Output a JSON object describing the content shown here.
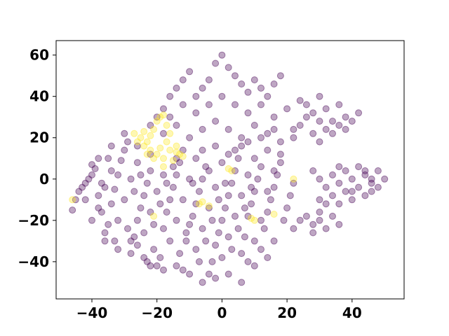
{
  "chart_data": {
    "type": "scatter",
    "title": "",
    "xlabel": "",
    "ylabel": "",
    "xlim": [
      -51,
      56
    ],
    "ylim": [
      -58,
      67
    ],
    "xticks": [
      -40,
      -20,
      0,
      20,
      40
    ],
    "yticks": [
      -40,
      -20,
      0,
      20,
      40,
      60
    ],
    "xtick_labels": [
      "−40",
      "−20",
      "0",
      "20",
      "40"
    ],
    "ytick_labels": [
      "−40",
      "−20",
      "0",
      "20",
      "40",
      "60"
    ],
    "grid": false,
    "legend": "none",
    "marker": "circle",
    "alpha": 0.35,
    "series": [
      {
        "class": 0,
        "color": "#440154",
        "points": [
          [
            -46,
            -15
          ],
          [
            -45,
            -10
          ],
          [
            -43,
            -4
          ],
          [
            -42,
            -2
          ],
          [
            -40,
            7
          ],
          [
            -39,
            5
          ],
          [
            -38,
            -8
          ],
          [
            -37,
            -16
          ],
          [
            -36,
            -26
          ],
          [
            -35,
            -22
          ],
          [
            -34,
            -12
          ],
          [
            -33,
            -5
          ],
          [
            -32,
            2
          ],
          [
            -31,
            9
          ],
          [
            -30,
            14
          ],
          [
            -29,
            18
          ],
          [
            -28,
            -30
          ],
          [
            -27,
            -28
          ],
          [
            -26,
            -20
          ],
          [
            -25,
            -14
          ],
          [
            -24,
            -8
          ],
          [
            -23,
            -2
          ],
          [
            -22,
            4
          ],
          [
            -21,
            -34
          ],
          [
            -20,
            -42
          ],
          [
            -19,
            -38
          ],
          [
            -18,
            -24
          ],
          [
            -17,
            -16
          ],
          [
            -16,
            -10
          ],
          [
            -15,
            -4
          ],
          [
            -14,
            2
          ],
          [
            -13,
            8
          ],
          [
            -12,
            -44
          ],
          [
            -11,
            -30
          ],
          [
            -10,
            -22
          ],
          [
            -9,
            -18
          ],
          [
            -8,
            -12
          ],
          [
            -7,
            -6
          ],
          [
            -6,
            0
          ],
          [
            -5,
            6
          ],
          [
            -4,
            -46
          ],
          [
            -3,
            -40
          ],
          [
            -2,
            -32
          ],
          [
            -1,
            -26
          ],
          [
            0,
            -20
          ],
          [
            1,
            -14
          ],
          [
            2,
            -8
          ],
          [
            3,
            -2
          ],
          [
            4,
            4
          ],
          [
            5,
            10
          ],
          [
            6,
            -36
          ],
          [
            7,
            -28
          ],
          [
            8,
            -18
          ],
          [
            9,
            -12
          ],
          [
            10,
            -6
          ],
          [
            11,
            0
          ],
          [
            12,
            6
          ],
          [
            13,
            -24
          ],
          [
            14,
            -16
          ],
          [
            15,
            -10
          ],
          [
            16,
            -4
          ],
          [
            17,
            2
          ],
          [
            18,
            8
          ],
          [
            19,
            -20
          ],
          [
            20,
            -14
          ],
          [
            21,
            -8
          ],
          [
            22,
            -2
          ],
          [
            -38,
            -14
          ],
          [
            -36,
            -4
          ],
          [
            -34,
            4
          ],
          [
            -32,
            -20
          ],
          [
            -30,
            -10
          ],
          [
            -28,
            0
          ],
          [
            -26,
            8
          ],
          [
            -24,
            -26
          ],
          [
            -22,
            -16
          ],
          [
            -20,
            -6
          ],
          [
            -18,
            2
          ],
          [
            -16,
            -30
          ],
          [
            -14,
            -20
          ],
          [
            -12,
            -10
          ],
          [
            -10,
            0
          ],
          [
            -8,
            -34
          ],
          [
            -6,
            -24
          ],
          [
            -4,
            -14
          ],
          [
            -2,
            -4
          ],
          [
            0,
            -38
          ],
          [
            2,
            -28
          ],
          [
            4,
            -18
          ],
          [
            6,
            -8
          ],
          [
            8,
            2
          ],
          [
            10,
            -30
          ],
          [
            12,
            -20
          ],
          [
            14,
            -6
          ],
          [
            16,
            4
          ],
          [
            -44,
            -6
          ],
          [
            -41,
            0
          ],
          [
            -37,
            -2
          ],
          [
            -35,
            10
          ],
          [
            -33,
            -30
          ],
          [
            -29,
            -24
          ],
          [
            -27,
            -6
          ],
          [
            -25,
            2
          ],
          [
            -23,
            -40
          ],
          [
            -21,
            -22
          ],
          [
            -19,
            -12
          ],
          [
            -17,
            -2
          ],
          [
            -15,
            6
          ],
          [
            -13,
            -36
          ],
          [
            -11,
            -26
          ],
          [
            -9,
            -2
          ],
          [
            -7,
            -40
          ],
          [
            -5,
            -30
          ],
          [
            -3,
            -20
          ],
          [
            -1,
            -10
          ],
          [
            1,
            -2
          ],
          [
            3,
            -34
          ],
          [
            5,
            -24
          ],
          [
            7,
            -14
          ],
          [
            9,
            -4
          ],
          [
            -20,
            30
          ],
          [
            -18,
            34
          ],
          [
            -16,
            40
          ],
          [
            -14,
            44
          ],
          [
            -12,
            48
          ],
          [
            -10,
            52
          ],
          [
            -8,
            40
          ],
          [
            -6,
            44
          ],
          [
            -4,
            48
          ],
          [
            -2,
            56
          ],
          [
            0,
            60
          ],
          [
            2,
            54
          ],
          [
            4,
            50
          ],
          [
            6,
            46
          ],
          [
            8,
            42
          ],
          [
            10,
            48
          ],
          [
            12,
            44
          ],
          [
            14,
            40
          ],
          [
            16,
            46
          ],
          [
            18,
            50
          ],
          [
            -16,
            30
          ],
          [
            -12,
            36
          ],
          [
            -8,
            32
          ],
          [
            -4,
            36
          ],
          [
            0,
            40
          ],
          [
            4,
            36
          ],
          [
            8,
            32
          ],
          [
            12,
            36
          ],
          [
            16,
            30
          ],
          [
            20,
            34
          ],
          [
            -22,
            26
          ],
          [
            -18,
            22
          ],
          [
            -14,
            26
          ],
          [
            -10,
            20
          ],
          [
            -6,
            24
          ],
          [
            -2,
            28
          ],
          [
            2,
            24
          ],
          [
            6,
            20
          ],
          [
            10,
            26
          ],
          [
            14,
            22
          ],
          [
            18,
            18
          ],
          [
            22,
            20
          ],
          [
            -26,
            16
          ],
          [
            -22,
            12
          ],
          [
            -2,
            16
          ],
          [
            2,
            12
          ],
          [
            6,
            16
          ],
          [
            10,
            10
          ],
          [
            14,
            14
          ],
          [
            18,
            12
          ],
          [
            -12,
            14
          ],
          [
            -8,
            10
          ],
          [
            -4,
            4
          ],
          [
            0,
            8
          ],
          [
            4,
            14
          ],
          [
            8,
            18
          ],
          [
            12,
            20
          ],
          [
            16,
            24
          ],
          [
            -14,
            10
          ],
          [
            -6,
            14
          ],
          [
            -30,
            22
          ],
          [
            -34,
            16
          ],
          [
            -38,
            10
          ],
          [
            -40,
            2
          ],
          [
            -42,
            -10
          ],
          [
            -40,
            -20
          ],
          [
            -36,
            -30
          ],
          [
            -32,
            -34
          ],
          [
            -28,
            -36
          ],
          [
            -26,
            -32
          ],
          [
            24,
            38
          ],
          [
            26,
            36
          ],
          [
            28,
            32
          ],
          [
            30,
            40
          ],
          [
            32,
            34
          ],
          [
            34,
            28
          ],
          [
            36,
            36
          ],
          [
            38,
            30
          ],
          [
            30,
            28
          ],
          [
            26,
            30
          ],
          [
            22,
            24
          ],
          [
            24,
            26
          ],
          [
            28,
            22
          ],
          [
            32,
            24
          ],
          [
            36,
            26
          ],
          [
            40,
            28
          ],
          [
            42,
            32
          ],
          [
            38,
            24
          ],
          [
            34,
            22
          ],
          [
            30,
            18
          ],
          [
            28,
            4
          ],
          [
            30,
            0
          ],
          [
            32,
            -4
          ],
          [
            34,
            2
          ],
          [
            36,
            6
          ],
          [
            30,
            -10
          ],
          [
            32,
            -12
          ],
          [
            34,
            -8
          ],
          [
            36,
            -2
          ],
          [
            38,
            4
          ],
          [
            26,
            -18
          ],
          [
            28,
            -22
          ],
          [
            30,
            -20
          ],
          [
            32,
            -24
          ],
          [
            34,
            -18
          ],
          [
            24,
            -20
          ],
          [
            28,
            -26
          ],
          [
            36,
            -22
          ],
          [
            22,
            -24
          ],
          [
            30,
            -16
          ],
          [
            40,
            0
          ],
          [
            42,
            -4
          ],
          [
            44,
            2
          ],
          [
            46,
            -2
          ],
          [
            48,
            4
          ],
          [
            50,
            0
          ],
          [
            44,
            -8
          ],
          [
            46,
            -6
          ],
          [
            40,
            -6
          ],
          [
            42,
            6
          ],
          [
            46,
            0
          ],
          [
            48,
            -4
          ],
          [
            44,
            4
          ],
          [
            38,
            -6
          ],
          [
            40,
            -10
          ],
          [
            36,
            -12
          ],
          [
            -6,
            -50
          ],
          [
            -2,
            -48
          ],
          [
            2,
            -46
          ],
          [
            6,
            -50
          ],
          [
            -10,
            -46
          ],
          [
            -14,
            -42
          ],
          [
            -18,
            -44
          ],
          [
            -22,
            -42
          ],
          [
            -24,
            -38
          ],
          [
            10,
            -42
          ],
          [
            14,
            -38
          ],
          [
            12,
            -34
          ],
          [
            8,
            -40
          ],
          [
            16,
            -30
          ]
        ]
      },
      {
        "class": 1,
        "color": "#fde725",
        "points": [
          [
            -24,
            23
          ],
          [
            -25,
            20
          ],
          [
            -23,
            18
          ],
          [
            -22,
            21
          ],
          [
            -21,
            24
          ],
          [
            -26,
            18
          ],
          [
            -24,
            16
          ],
          [
            -27,
            22
          ],
          [
            -19,
            30
          ],
          [
            -18,
            31
          ],
          [
            -20,
            28
          ],
          [
            -17,
            26
          ],
          [
            -16,
            22
          ],
          [
            -22,
            14
          ],
          [
            -20,
            12
          ],
          [
            -18,
            10
          ],
          [
            -16,
            14
          ],
          [
            -14,
            16
          ],
          [
            -13,
            12
          ],
          [
            -15,
            9
          ],
          [
            -21,
            10
          ],
          [
            -19,
            15
          ],
          [
            -17,
            18
          ],
          [
            -23,
            12
          ],
          [
            -12,
            11
          ],
          [
            -14,
            13
          ],
          [
            2,
            5
          ],
          [
            3,
            4
          ],
          [
            -6,
            -11
          ],
          [
            -7,
            -12
          ],
          [
            -4,
            -13
          ],
          [
            9,
            -19
          ],
          [
            10,
            -20
          ],
          [
            -18,
            6
          ],
          [
            22,
            0
          ],
          [
            -46,
            -10
          ],
          [
            -21,
            -18
          ],
          [
            16,
            -17
          ]
        ]
      }
    ]
  }
}
